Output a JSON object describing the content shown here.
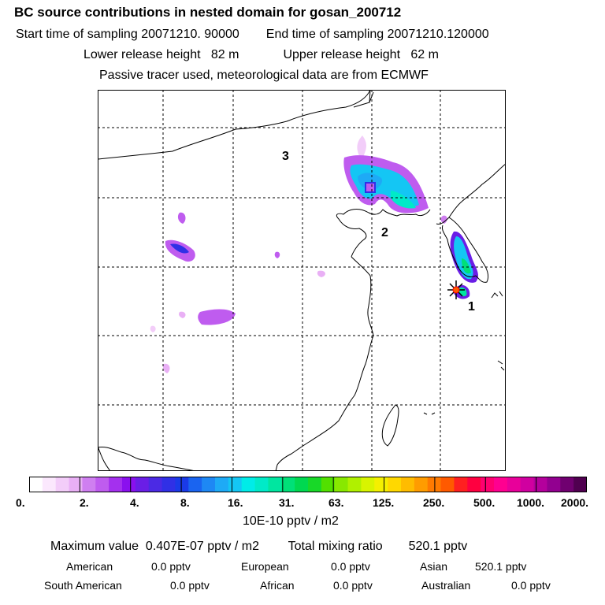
{
  "header": {
    "title": "BC  source contributions in nested domain for gosan_200712",
    "start_label": "Start time of sampling",
    "start_value": "20071210. 90000",
    "end_label": "End time of sampling",
    "end_value": "20071210.120000",
    "lower_label": "Lower release height",
    "lower_value": "82 m",
    "upper_label": "Upper release height",
    "upper_value": "62 m",
    "tracer_note": "Passive tracer used, meteorological data are from ECMWF"
  },
  "map": {
    "markers": [
      "3",
      "2",
      "1"
    ]
  },
  "colorbar": {
    "colors": [
      "#ffffff",
      "#fbe8fd",
      "#f3cdf9",
      "#e9b0f5",
      "#cf7ff0",
      "#bf5cef",
      "#a430ee",
      "#8a10ee",
      "#6a1ee6",
      "#4b2ae4",
      "#3030e6",
      "#1a3ae8",
      "#1a64f0",
      "#1e88f4",
      "#1eaaf6",
      "#14c6f4",
      "#00ece8",
      "#00eac8",
      "#00e6a0",
      "#00e078",
      "#00d850",
      "#18d828",
      "#52e000",
      "#88e800",
      "#b0f000",
      "#d8f400",
      "#f4f000",
      "#ffd800",
      "#ffbc00",
      "#ff9c00",
      "#ff7a00",
      "#ff5a00",
      "#ff2020",
      "#ff0040",
      "#ff0070",
      "#ff0090",
      "#e8009a",
      "#d000a0",
      "#b4009c",
      "#920090",
      "#700070",
      "#500050"
    ],
    "ticks": [
      "0.",
      "2.",
      "4.",
      "8.",
      "16.",
      "31.",
      "63.",
      "125.",
      "250.",
      "500.",
      "1000.",
      "2000."
    ],
    "unit": "10E-10 pptv / m2"
  },
  "summary": {
    "max_label": "Maximum value",
    "max_value": "0.407E-07 pptv / m2",
    "total_label": "Total mixing ratio",
    "total_value": "520.1 pptv"
  },
  "regions": [
    {
      "name": "American",
      "value": "0.0 pptv"
    },
    {
      "name": "European",
      "value": "0.0 pptv"
    },
    {
      "name": "Asian",
      "value": "520.1 pptv"
    },
    {
      "name": "South American",
      "value": "0.0 pptv"
    },
    {
      "name": "African",
      "value": "0.0 pptv"
    },
    {
      "name": "Australian",
      "value": "0.0 pptv"
    }
  ]
}
